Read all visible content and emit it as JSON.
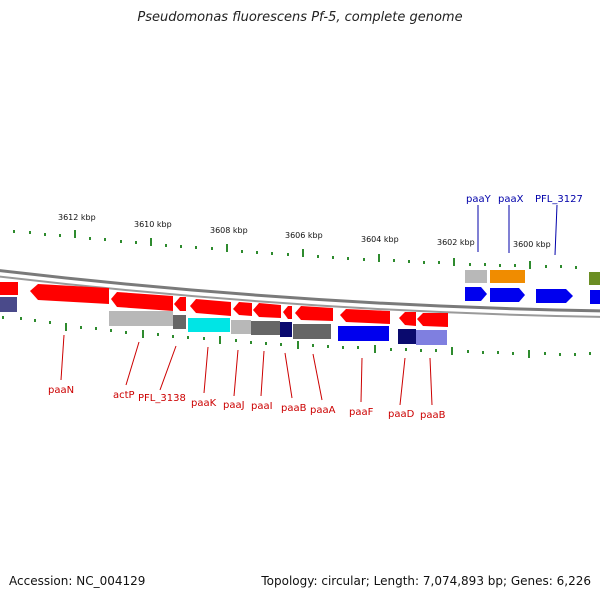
{
  "title": "Pseudomonas fluorescens Pf-5, complete genome",
  "footer": {
    "accession": "Accession: NC_004129",
    "summary": "Topology: circular; Length: 7,074,893 bp; Genes: 6,226"
  },
  "colors": {
    "red": "#ff0000",
    "blue": "#0000ee",
    "navy": "#0a0a6e",
    "lavender": "#7f7fe0",
    "cyan": "#00e5e5",
    "light_gray": "#b8b8b8",
    "dark_gray": "#666666",
    "orange": "#f08c00",
    "olive": "#6b8e23",
    "tick_green": "#2e8b2e",
    "backbone": "#7a7a7a",
    "reverse_label": "#cc0000",
    "forward_label": "#0000aa"
  },
  "position_labels": [
    "3612 kbp",
    "3610 kbp",
    "3608 kbp",
    "3606 kbp",
    "3604 kbp",
    "3602 kbp",
    "3600 kbp"
  ],
  "forward_gene_labels": [
    "paaY",
    "paaX",
    "PFL_3127"
  ],
  "reverse_gene_labels": [
    "paaN",
    "actP",
    "PFL_3138",
    "paaK",
    "paaJ",
    "paaI",
    "paaB",
    "paaA",
    "paaF",
    "paaD",
    "paaB"
  ]
}
